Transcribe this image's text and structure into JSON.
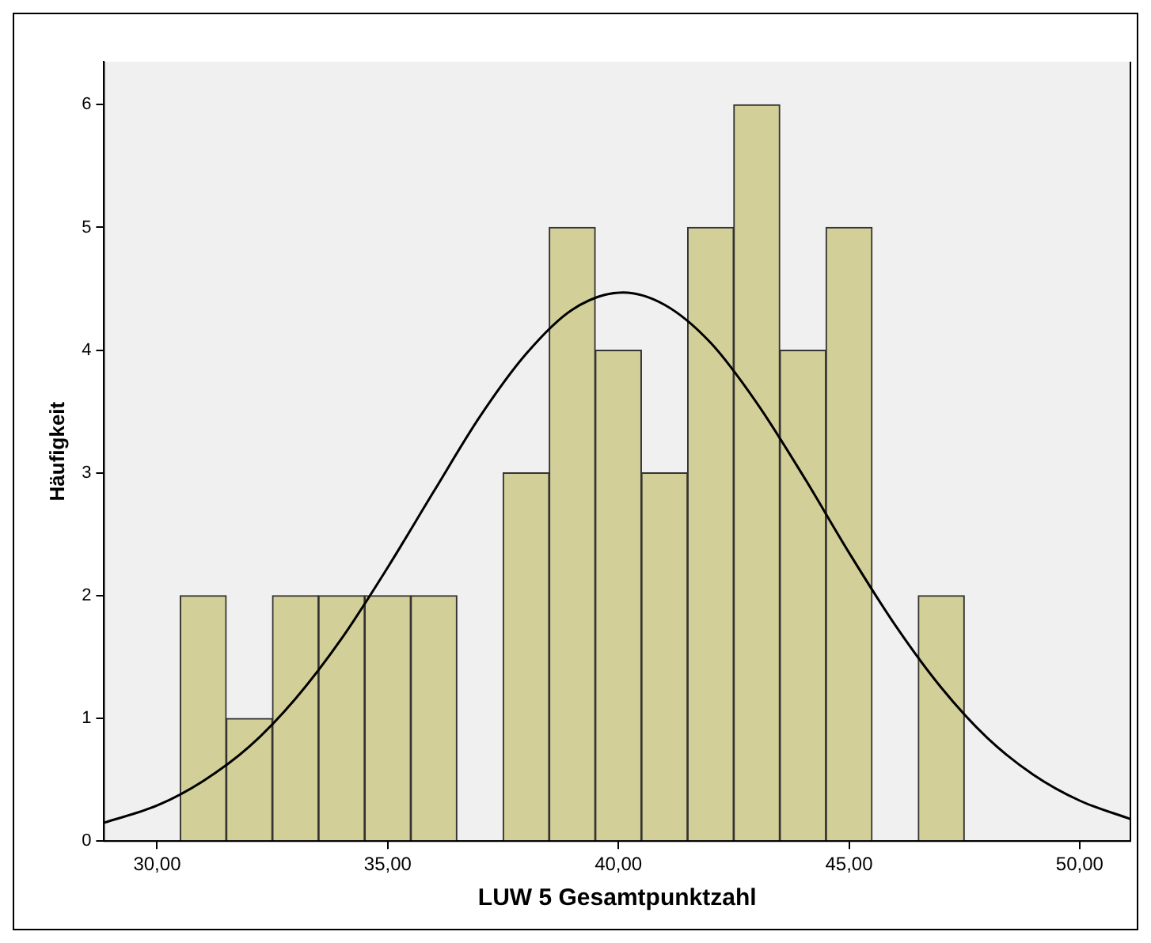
{
  "chart_data": {
    "type": "histogram",
    "xlabel": "LUW 5 Gesamtpunktzahl",
    "ylabel": "Häufigkeit",
    "bins": [
      30.5,
      31.5,
      32.5,
      33.5,
      34.5,
      35.5,
      36.5,
      37.5,
      38.5,
      39.5,
      40.5,
      41.5,
      42.5,
      43.5,
      44.5,
      45.5,
      46.5,
      47.5
    ],
    "values": [
      2,
      1,
      2,
      2,
      2,
      2,
      0,
      3,
      5,
      4,
      3,
      5,
      6,
      4,
      5,
      0,
      2
    ],
    "color": "#d3cf98",
    "series": [
      {
        "type": "line",
        "color": "#000000",
        "x": [
          28.85,
          30,
          31,
          32,
          33,
          34,
          35,
          36,
          37,
          38,
          39,
          40.1,
          41,
          42,
          43,
          44,
          45,
          46,
          47,
          48,
          49,
          50,
          51.1
        ],
        "values": [
          0.15,
          0.29,
          0.49,
          0.77,
          1.16,
          1.65,
          2.23,
          2.85,
          3.46,
          3.97,
          4.33,
          4.47,
          4.37,
          4.06,
          3.57,
          2.98,
          2.35,
          1.76,
          1.25,
          0.84,
          0.54,
          0.33,
          0.18
        ]
      }
    ],
    "xlim": [
      28.85,
      51.1
    ],
    "xticks": [
      {
        "value": 30,
        "label": "30,00"
      },
      {
        "value": 35,
        "label": "35,00"
      },
      {
        "value": 40,
        "label": "40,00"
      },
      {
        "value": 45,
        "label": "45,00"
      },
      {
        "value": 50,
        "label": "50,00"
      }
    ],
    "ylim": [
      0,
      6.35
    ],
    "yticks": [
      0,
      1,
      2,
      3,
      4,
      5,
      6
    ],
    "grid": false,
    "legend": false,
    "marker": "none",
    "line_style": "solid"
  }
}
